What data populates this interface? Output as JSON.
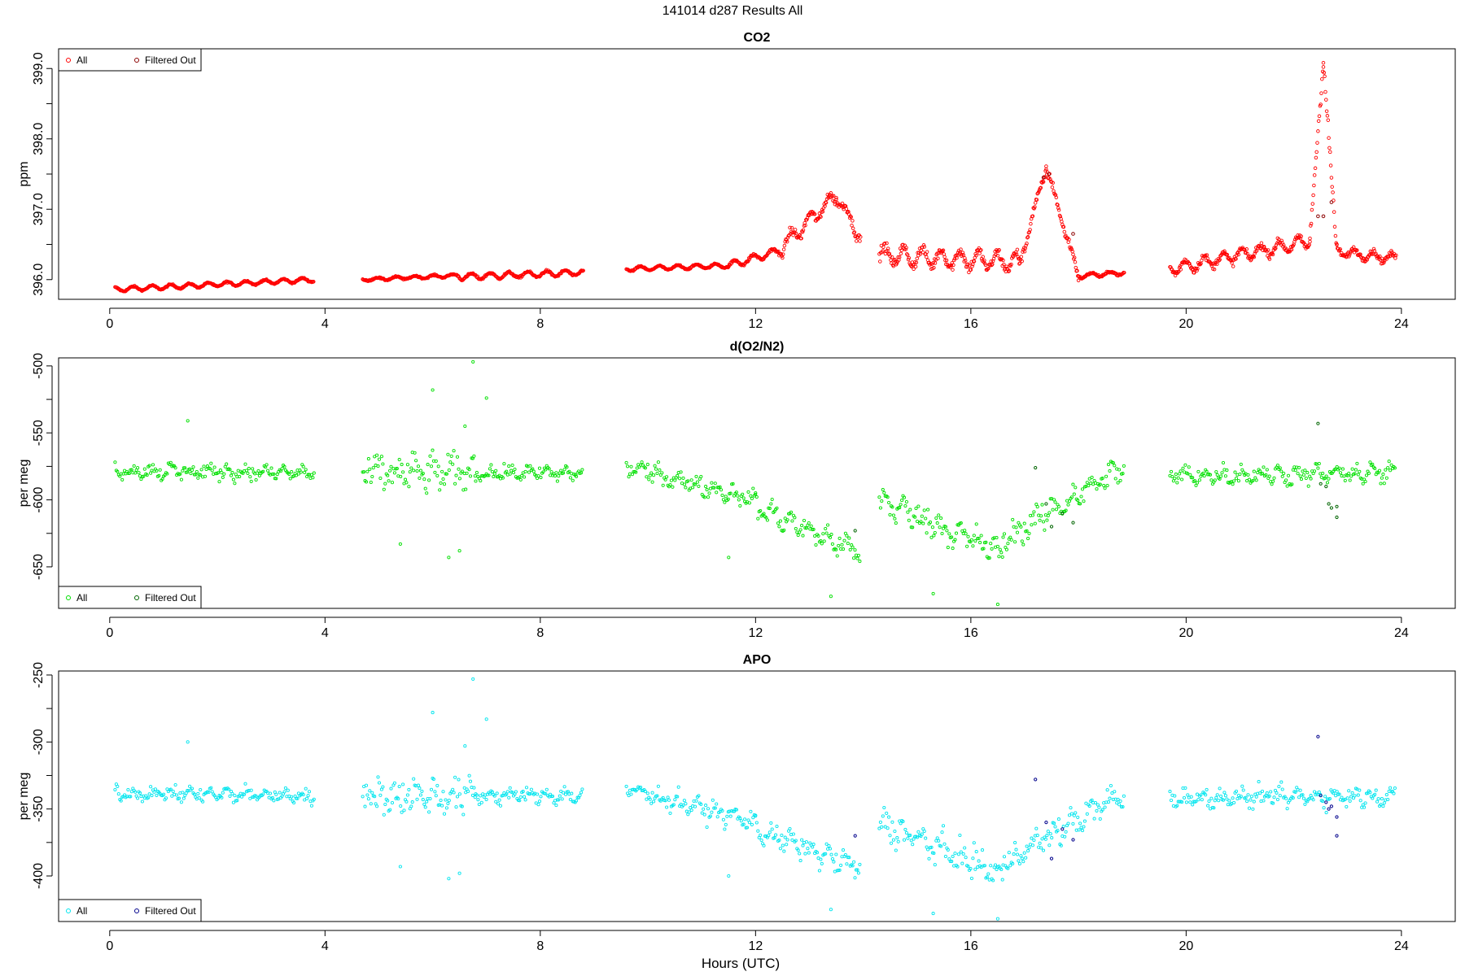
{
  "title": "141014   d287   Results All",
  "xlabel": "Hours (UTC)",
  "chart_data": [
    {
      "type": "scatter",
      "title": "CO2",
      "ylabel": "ppm",
      "xlim": [
        -0.95,
        25
      ],
      "ylim": [
        395.72,
        399.28
      ],
      "xticks": [
        0,
        4,
        8,
        12,
        16,
        20,
        24
      ],
      "xtick_labels": [
        "0",
        "4",
        "8",
        "12",
        "16",
        "20",
        "24"
      ],
      "yticks": [
        396,
        397,
        398,
        399
      ],
      "ytick_labels": [
        "396.0",
        "397.0",
        "398.0",
        "399.0"
      ],
      "ytick_minor": [
        396.5,
        397.5,
        398.5
      ],
      "legend": {
        "position": "top-left",
        "entries": [
          "All",
          "Filtered Out"
        ]
      },
      "colors": {
        "all": "#ff0000",
        "filtered": "#8b0000"
      },
      "marker_size": 1.8,
      "segments": [
        {
          "x": [
            0.1,
            3.8
          ],
          "base": [
            395.86,
            396.0
          ],
          "noise": 0.02,
          "wave": 0.03
        },
        {
          "x": [
            4.7,
            6.5
          ],
          "base": [
            396.0,
            396.06
          ],
          "noise": 0.02,
          "wave": 0.02
        },
        {
          "x": [
            6.5,
            8.8
          ],
          "base": [
            396.04,
            396.1
          ],
          "noise": 0.03,
          "wave": 0.04
        },
        {
          "x": [
            9.6,
            11.5
          ],
          "base": [
            396.15,
            396.2
          ],
          "noise": 0.02,
          "wave": 0.03
        },
        {
          "x": [
            11.5,
            12.4
          ],
          "base": [
            396.2,
            396.4
          ],
          "noise": 0.04,
          "wave": 0.05
        },
        {
          "x": [
            12.4,
            13.5
          ],
          "base": [
            396.4,
            397.2
          ],
          "noise": 0.12,
          "wave": 0.1
        },
        {
          "x": [
            13.5,
            13.95
          ],
          "base": [
            397.2,
            396.6
          ],
          "noise": 0.12,
          "wave": 0.08
        },
        {
          "x": [
            14.3,
            16.9
          ],
          "base": [
            396.35,
            396.25
          ],
          "noise": 0.15,
          "wave": 0.12
        },
        {
          "x": [
            16.9,
            17.4
          ],
          "base": [
            396.2,
            397.6
          ],
          "noise": 0.12,
          "wave": 0.05
        },
        {
          "x": [
            17.4,
            18.0
          ],
          "base": [
            397.6,
            396.05
          ],
          "noise": 0.12,
          "wave": 0.05
        },
        {
          "x": [
            18.0,
            18.85
          ],
          "base": [
            396.05,
            396.1
          ],
          "noise": 0.03,
          "wave": 0.03
        },
        {
          "x": [
            19.7,
            22.3
          ],
          "base": [
            396.15,
            396.55
          ],
          "noise": 0.1,
          "wave": 0.08
        },
        {
          "x": [
            22.3,
            22.55
          ],
          "base": [
            396.6,
            399.1
          ],
          "noise": 0.2,
          "wave": 0.0
        },
        {
          "x": [
            22.55,
            22.8
          ],
          "base": [
            399.1,
            396.4
          ],
          "noise": 0.25,
          "wave": 0.0
        },
        {
          "x": [
            22.8,
            23.9
          ],
          "base": [
            396.4,
            396.3
          ],
          "noise": 0.08,
          "wave": 0.06
        }
      ],
      "filtered_points": [
        [
          17.35,
          397.45
        ],
        [
          17.45,
          397.5
        ],
        [
          17.9,
          396.65
        ],
        [
          22.45,
          396.9
        ],
        [
          22.55,
          396.9
        ],
        [
          22.7,
          397.1
        ]
      ]
    },
    {
      "type": "scatter",
      "title": "d(O2/N2)",
      "ylabel": "per meg",
      "xlim": [
        -0.95,
        25
      ],
      "ylim": [
        -681,
        -494
      ],
      "xticks": [
        0,
        4,
        8,
        12,
        16,
        20,
        24
      ],
      "xtick_labels": [
        "0",
        "4",
        "8",
        "12",
        "16",
        "20",
        "24"
      ],
      "yticks": [
        -650,
        -600,
        -550,
        -500
      ],
      "ytick_labels": [
        "-650",
        "-600",
        "-550",
        "-500"
      ],
      "ytick_minor": [
        -625,
        -575,
        -525
      ],
      "legend": {
        "position": "bottom-left",
        "entries": [
          "All",
          "Filtered Out"
        ]
      },
      "colors": {
        "all": "#00e000",
        "filtered": "#006400"
      },
      "marker_size": 1.6,
      "segments": [
        {
          "x": [
            0.1,
            3.8
          ],
          "base": [
            -578,
            -580
          ],
          "noise": 10,
          "wave": 3,
          "step": 0.022
        },
        {
          "x": [
            4.7,
            6.8
          ],
          "base": [
            -580,
            -580
          ],
          "noise": 25,
          "wave": 5,
          "step": 0.022
        },
        {
          "x": [
            6.8,
            8.8
          ],
          "base": [
            -580,
            -580
          ],
          "noise": 10,
          "wave": 3,
          "step": 0.022
        },
        {
          "x": [
            9.6,
            12.0
          ],
          "base": [
            -575,
            -600
          ],
          "noise": 12,
          "wave": 4,
          "step": 0.022
        },
        {
          "x": [
            12.0,
            13.95
          ],
          "base": [
            -605,
            -640
          ],
          "noise": 15,
          "wave": 5,
          "step": 0.022
        },
        {
          "x": [
            14.3,
            16.6
          ],
          "base": [
            -600,
            -640
          ],
          "noise": 20,
          "wave": 5,
          "step": 0.022
        },
        {
          "x": [
            16.6,
            18.85
          ],
          "base": [
            -630,
            -575
          ],
          "noise": 18,
          "wave": 5,
          "step": 0.022
        },
        {
          "x": [
            19.7,
            23.9
          ],
          "base": [
            -582,
            -580
          ],
          "noise": 12,
          "wave": 4,
          "step": 0.022
        }
      ],
      "extra_points": [
        [
          1.45,
          -541
        ],
        [
          6.0,
          -518
        ],
        [
          6.75,
          -497
        ],
        [
          6.6,
          -545
        ],
        [
          7.0,
          -524
        ],
        [
          6.3,
          -643
        ],
        [
          6.5,
          -638
        ],
        [
          5.4,
          -633
        ],
        [
          11.5,
          -643
        ],
        [
          13.4,
          -672
        ],
        [
          15.3,
          -670
        ],
        [
          16.5,
          -678
        ]
      ],
      "filtered_points": [
        [
          13.85,
          -623
        ],
        [
          17.2,
          -576
        ],
        [
          17.4,
          -603
        ],
        [
          17.5,
          -620
        ],
        [
          17.7,
          -610
        ],
        [
          17.9,
          -617
        ],
        [
          22.45,
          -543
        ],
        [
          22.5,
          -588
        ],
        [
          22.6,
          -590
        ],
        [
          22.65,
          -603
        ],
        [
          22.7,
          -606
        ],
        [
          22.8,
          -605
        ],
        [
          22.8,
          -613
        ]
      ]
    },
    {
      "type": "scatter",
      "title": "APO",
      "ylabel": "per meg",
      "xlim": [
        -0.95,
        25
      ],
      "ylim": [
        -434,
        -247
      ],
      "xticks": [
        0,
        4,
        8,
        12,
        16,
        20,
        24
      ],
      "xtick_labels": [
        "0",
        "4",
        "8",
        "12",
        "16",
        "20",
        "24"
      ],
      "yticks": [
        -400,
        -350,
        -300,
        -250
      ],
      "ytick_labels": [
        "-400",
        "-350",
        "-300",
        "-250"
      ],
      "ytick_minor": [
        -375,
        -325,
        -275
      ],
      "legend": {
        "position": "bottom-left",
        "entries": [
          "All",
          "Filtered Out"
        ]
      },
      "colors": {
        "all": "#00e5ee",
        "filtered": "#00008b"
      },
      "marker_size": 1.6,
      "segments": [
        {
          "x": [
            0.1,
            3.8
          ],
          "base": [
            -338,
            -340
          ],
          "noise": 10,
          "wave": 3,
          "step": 0.022
        },
        {
          "x": [
            4.7,
            6.8
          ],
          "base": [
            -340,
            -340
          ],
          "noise": 25,
          "wave": 5,
          "step": 0.022
        },
        {
          "x": [
            6.8,
            8.8
          ],
          "base": [
            -340,
            -340
          ],
          "noise": 10,
          "wave": 3,
          "step": 0.022
        },
        {
          "x": [
            9.6,
            12.0
          ],
          "base": [
            -335,
            -360
          ],
          "noise": 12,
          "wave": 4,
          "step": 0.022
        },
        {
          "x": [
            12.0,
            13.95
          ],
          "base": [
            -365,
            -395
          ],
          "noise": 15,
          "wave": 5,
          "step": 0.022
        },
        {
          "x": [
            14.3,
            16.6
          ],
          "base": [
            -360,
            -400
          ],
          "noise": 20,
          "wave": 5,
          "step": 0.022
        },
        {
          "x": [
            16.6,
            18.85
          ],
          "base": [
            -390,
            -338
          ],
          "noise": 18,
          "wave": 5,
          "step": 0.022
        },
        {
          "x": [
            19.7,
            23.9
          ],
          "base": [
            -342,
            -340
          ],
          "noise": 12,
          "wave": 4,
          "step": 0.022
        }
      ],
      "extra_points": [
        [
          1.45,
          -300
        ],
        [
          6.0,
          -278
        ],
        [
          6.75,
          -253
        ],
        [
          6.6,
          -303
        ],
        [
          7.0,
          -283
        ],
        [
          6.3,
          -402
        ],
        [
          6.5,
          -398
        ],
        [
          5.4,
          -393
        ],
        [
          11.5,
          -400
        ],
        [
          13.4,
          -425
        ],
        [
          15.3,
          -428
        ],
        [
          16.5,
          -432
        ]
      ],
      "filtered_points": [
        [
          13.85,
          -370
        ],
        [
          17.2,
          -328
        ],
        [
          17.4,
          -360
        ],
        [
          17.5,
          -387
        ],
        [
          17.7,
          -365
        ],
        [
          17.9,
          -373
        ],
        [
          22.45,
          -296
        ],
        [
          22.5,
          -340
        ],
        [
          22.6,
          -345
        ],
        [
          22.65,
          -350
        ],
        [
          22.7,
          -348
        ],
        [
          22.8,
          -356
        ],
        [
          22.8,
          -370
        ]
      ]
    }
  ]
}
